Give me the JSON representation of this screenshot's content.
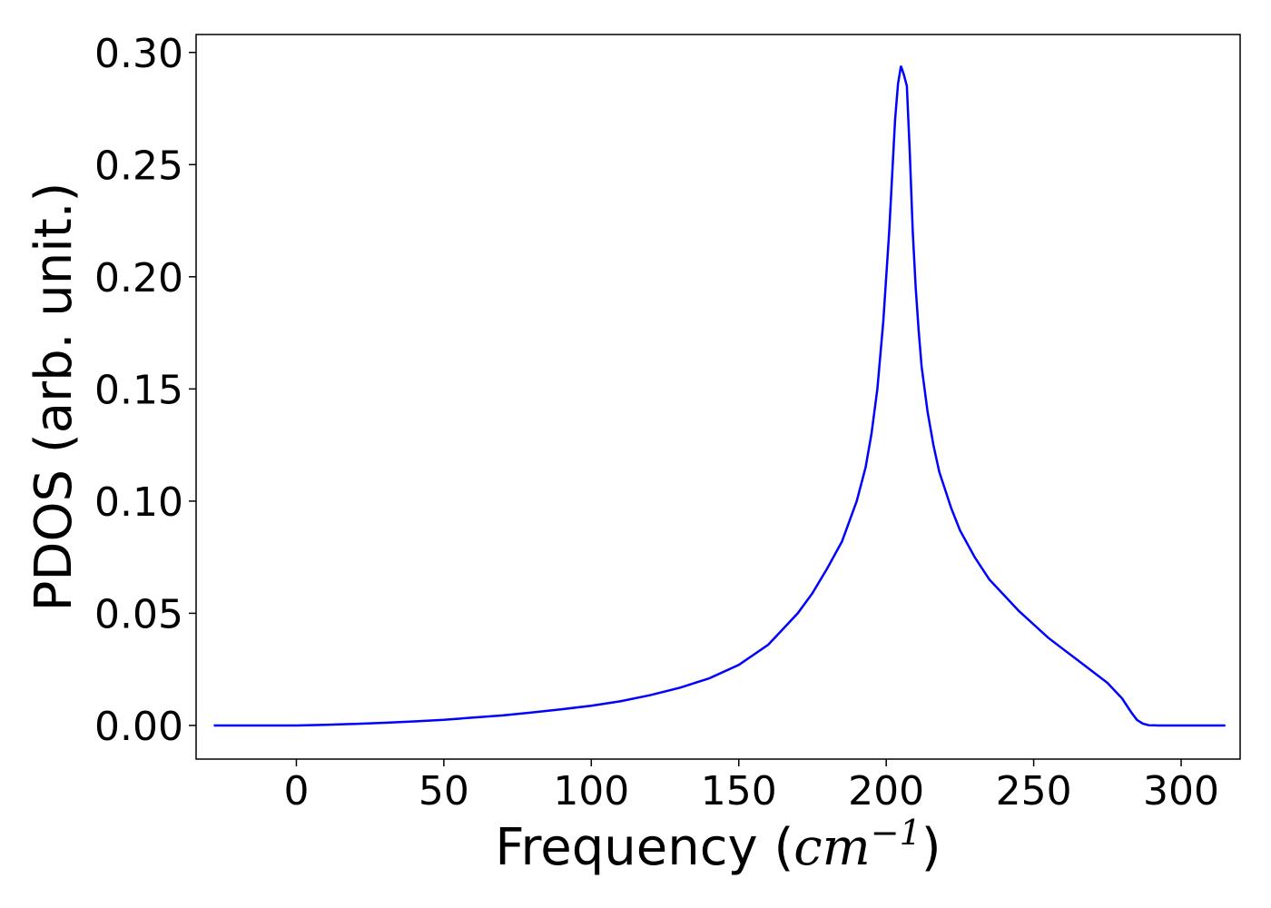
{
  "chart_data": {
    "type": "line",
    "title": "",
    "xlabel_prefix": "Frequency (",
    "xlabel_math": "cm",
    "xlabel_sup": "−1",
    "xlabel_suffix": ")",
    "ylabel": "PDOS (arb. unit.)",
    "xlim": [
      -34,
      320
    ],
    "ylim": [
      -0.015,
      0.308
    ],
    "grid": false,
    "x_ticks": [
      0,
      50,
      100,
      150,
      200,
      250,
      300
    ],
    "y_ticks": [
      0.0,
      0.05,
      0.1,
      0.15,
      0.2,
      0.25,
      0.3
    ],
    "x_tick_labels": [
      "0",
      "50",
      "100",
      "150",
      "200",
      "250",
      "300"
    ],
    "y_tick_labels": [
      "0.00",
      "0.05",
      "0.10",
      "0.15",
      "0.20",
      "0.25",
      "0.30"
    ],
    "series": [
      {
        "color": "#0000ff",
        "x": [
          -28,
          0,
          10,
          20,
          30,
          40,
          50,
          60,
          70,
          80,
          90,
          100,
          110,
          120,
          130,
          140,
          150,
          160,
          165,
          170,
          175,
          180,
          185,
          190,
          193,
          195,
          197,
          199,
          201,
          203,
          204,
          205,
          206,
          207,
          208,
          209,
          210,
          211,
          212,
          214,
          216,
          218,
          220,
          222,
          225,
          230,
          235,
          240,
          245,
          250,
          255,
          260,
          265,
          270,
          275,
          280,
          283,
          285,
          287,
          289,
          292,
          300,
          315
        ],
        "y": [
          0.0,
          0.0,
          0.0003,
          0.0007,
          0.0012,
          0.0018,
          0.0025,
          0.0035,
          0.0045,
          0.0058,
          0.0072,
          0.0088,
          0.0108,
          0.0135,
          0.0168,
          0.021,
          0.027,
          0.036,
          0.043,
          0.05,
          0.059,
          0.07,
          0.082,
          0.1,
          0.115,
          0.13,
          0.15,
          0.18,
          0.22,
          0.27,
          0.286,
          0.294,
          0.29,
          0.285,
          0.255,
          0.22,
          0.195,
          0.176,
          0.16,
          0.14,
          0.125,
          0.113,
          0.105,
          0.097,
          0.087,
          0.075,
          0.065,
          0.058,
          0.051,
          0.045,
          0.039,
          0.034,
          0.029,
          0.024,
          0.019,
          0.012,
          0.006,
          0.0025,
          0.0008,
          0.0001,
          0.0,
          0.0,
          0.0
        ]
      }
    ]
  }
}
